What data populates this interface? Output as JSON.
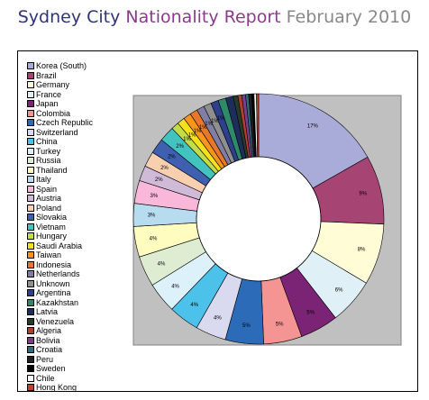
{
  "header": {
    "part1": "Sydney City",
    "part2": "Nationality Report",
    "part3": "February 2010"
  },
  "colors": {
    "title_dark": "#2f3477",
    "title_purple": "#8c3a8c",
    "title_gray": "#888888",
    "plot_area": "#c0c0c0"
  },
  "chart_data": {
    "type": "pie",
    "donut": true,
    "legend_position": "left",
    "series": [
      {
        "name": "Korea (South)",
        "value": 17,
        "label": "17%",
        "color": "#a9acd8"
      },
      {
        "name": "Brazil",
        "value": 9,
        "label": "9%",
        "color": "#a64474"
      },
      {
        "name": "Germany",
        "value": 8,
        "label": "8%",
        "color": "#fffcd6"
      },
      {
        "name": "France",
        "value": 6,
        "label": "6%",
        "color": "#dff0f6"
      },
      {
        "name": "Japan",
        "value": 5,
        "label": "5%",
        "color": "#7b2374"
      },
      {
        "name": "Colombia",
        "value": 5,
        "label": "5%",
        "color": "#f59593"
      },
      {
        "name": "Czech Republic",
        "value": 5,
        "label": "5%",
        "color": "#2c6bb8"
      },
      {
        "name": "Switzerland",
        "value": 4,
        "label": "4%",
        "color": "#d9d9ef"
      },
      {
        "name": "China",
        "value": 4,
        "label": "4%",
        "color": "#4cc1e9"
      },
      {
        "name": "Turkey",
        "value": 4,
        "label": "4%",
        "color": "#dcf1f9"
      },
      {
        "name": "Russia",
        "value": 4,
        "label": "4%",
        "color": "#deecd2"
      },
      {
        "name": "Thailand",
        "value": 4,
        "label": "4%",
        "color": "#fffcc0"
      },
      {
        "name": "Italy",
        "value": 3,
        "label": "3%",
        "color": "#b7dcef"
      },
      {
        "name": "Spain",
        "value": 3,
        "label": "3%",
        "color": "#f9b8d9"
      },
      {
        "name": "Austria",
        "value": 2,
        "label": "2%",
        "color": "#cfbad8"
      },
      {
        "name": "Poland",
        "value": 2,
        "label": "2%",
        "color": "#f8d0b0"
      },
      {
        "name": "Slovakia",
        "value": 2,
        "label": "2%",
        "color": "#3f5fb0"
      },
      {
        "name": "Vietnam",
        "value": 2,
        "label": "2%",
        "color": "#43c3c0"
      },
      {
        "name": "Hungary",
        "value": 1,
        "label": "1%",
        "color": "#c2dc4a"
      },
      {
        "name": "Saudi Arabia",
        "value": 1,
        "label": "1%",
        "color": "#f5e01a"
      },
      {
        "name": "Taiwan",
        "value": 1,
        "label": "1%",
        "color": "#f7951d"
      },
      {
        "name": "Indonesia",
        "value": 1,
        "label": "1%",
        "color": "#e8772a"
      },
      {
        "name": "Netherlands",
        "value": 1,
        "label": "1%",
        "color": "#7f7fa6"
      },
      {
        "name": "Unknown",
        "value": 1,
        "label": "1%",
        "color": "#8f8f8f"
      },
      {
        "name": "Argentina",
        "value": 1,
        "label": "1%",
        "color": "#2e3f8c"
      },
      {
        "name": "Kazakhstan",
        "value": 1,
        "label": "",
        "color": "#2f8a6a"
      },
      {
        "name": "Latvia",
        "value": 1,
        "label": "",
        "color": "#1e2e5c"
      },
      {
        "name": "Venezuela",
        "value": 0.6,
        "label": "",
        "color": "#283b2a"
      },
      {
        "name": "Algeria",
        "value": 0.5,
        "label": "",
        "color": "#b0402b"
      },
      {
        "name": "Bolivia",
        "value": 0.5,
        "label": "",
        "color": "#7a3f8a"
      },
      {
        "name": "Croatia",
        "value": 0.4,
        "label": "",
        "color": "#2f6b7a"
      },
      {
        "name": "Peru",
        "value": 0.4,
        "label": "",
        "color": "#202020"
      },
      {
        "name": "Sweden",
        "value": 0.3,
        "label": "",
        "color": "#000000"
      },
      {
        "name": "Chile",
        "value": 0.3,
        "label": "",
        "color": "#ffffff"
      },
      {
        "name": "Hong Kong",
        "value": 0.3,
        "label": "",
        "color": "#c0402a"
      }
    ]
  }
}
